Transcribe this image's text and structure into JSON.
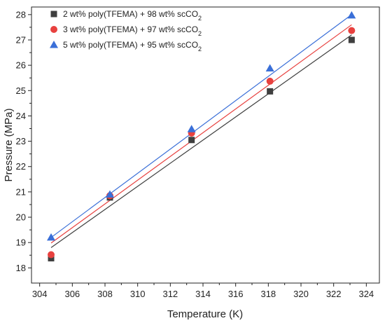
{
  "chart_data": {
    "type": "scatter",
    "xlabel": "Temperature (K)",
    "ylabel": "Pressure (MPa)",
    "xlim": [
      303.5,
      324.8
    ],
    "ylim": [
      17.4,
      28.3
    ],
    "x_ticks": [
      304,
      306,
      308,
      310,
      312,
      314,
      316,
      318,
      320,
      322,
      324
    ],
    "y_ticks": [
      18,
      19,
      20,
      21,
      22,
      23,
      24,
      25,
      26,
      27,
      28
    ],
    "grid": false,
    "legend_position": "top-left",
    "series": [
      {
        "name": "2 wt% poly(TFEMA) + 98 wt% scCO",
        "name_subscript": "2",
        "marker": "square",
        "color": "#3f3f3f",
        "x": [
          304.7,
          308.3,
          313.3,
          318.1,
          323.1
        ],
        "y": [
          18.38,
          20.78,
          23.05,
          24.97,
          27.0
        ],
        "fit": {
          "x": [
            304.7,
            323.1
          ],
          "y": [
            18.8,
            27.2
          ]
        }
      },
      {
        "name": "3 wt% poly(TFEMA) + 97 wt% scCO",
        "name_subscript": "2",
        "marker": "circle",
        "color": "#e8413f",
        "x": [
          304.7,
          308.3,
          313.3,
          318.1,
          323.1
        ],
        "y": [
          18.52,
          20.85,
          23.32,
          25.37,
          27.37
        ],
        "fit": {
          "x": [
            304.7,
            323.1
          ],
          "y": [
            18.98,
            27.6
          ]
        }
      },
      {
        "name": "5 wt% poly(TFEMA) + 95 wt% scCO",
        "name_subscript": "2",
        "marker": "triangle",
        "color": "#3a6fd8",
        "x": [
          304.7,
          308.3,
          313.3,
          318.1,
          323.1
        ],
        "y": [
          19.2,
          20.9,
          23.48,
          25.88,
          27.97
        ],
        "fit": {
          "x": [
            304.7,
            323.1
          ],
          "y": [
            19.2,
            28.0
          ]
        }
      }
    ]
  }
}
